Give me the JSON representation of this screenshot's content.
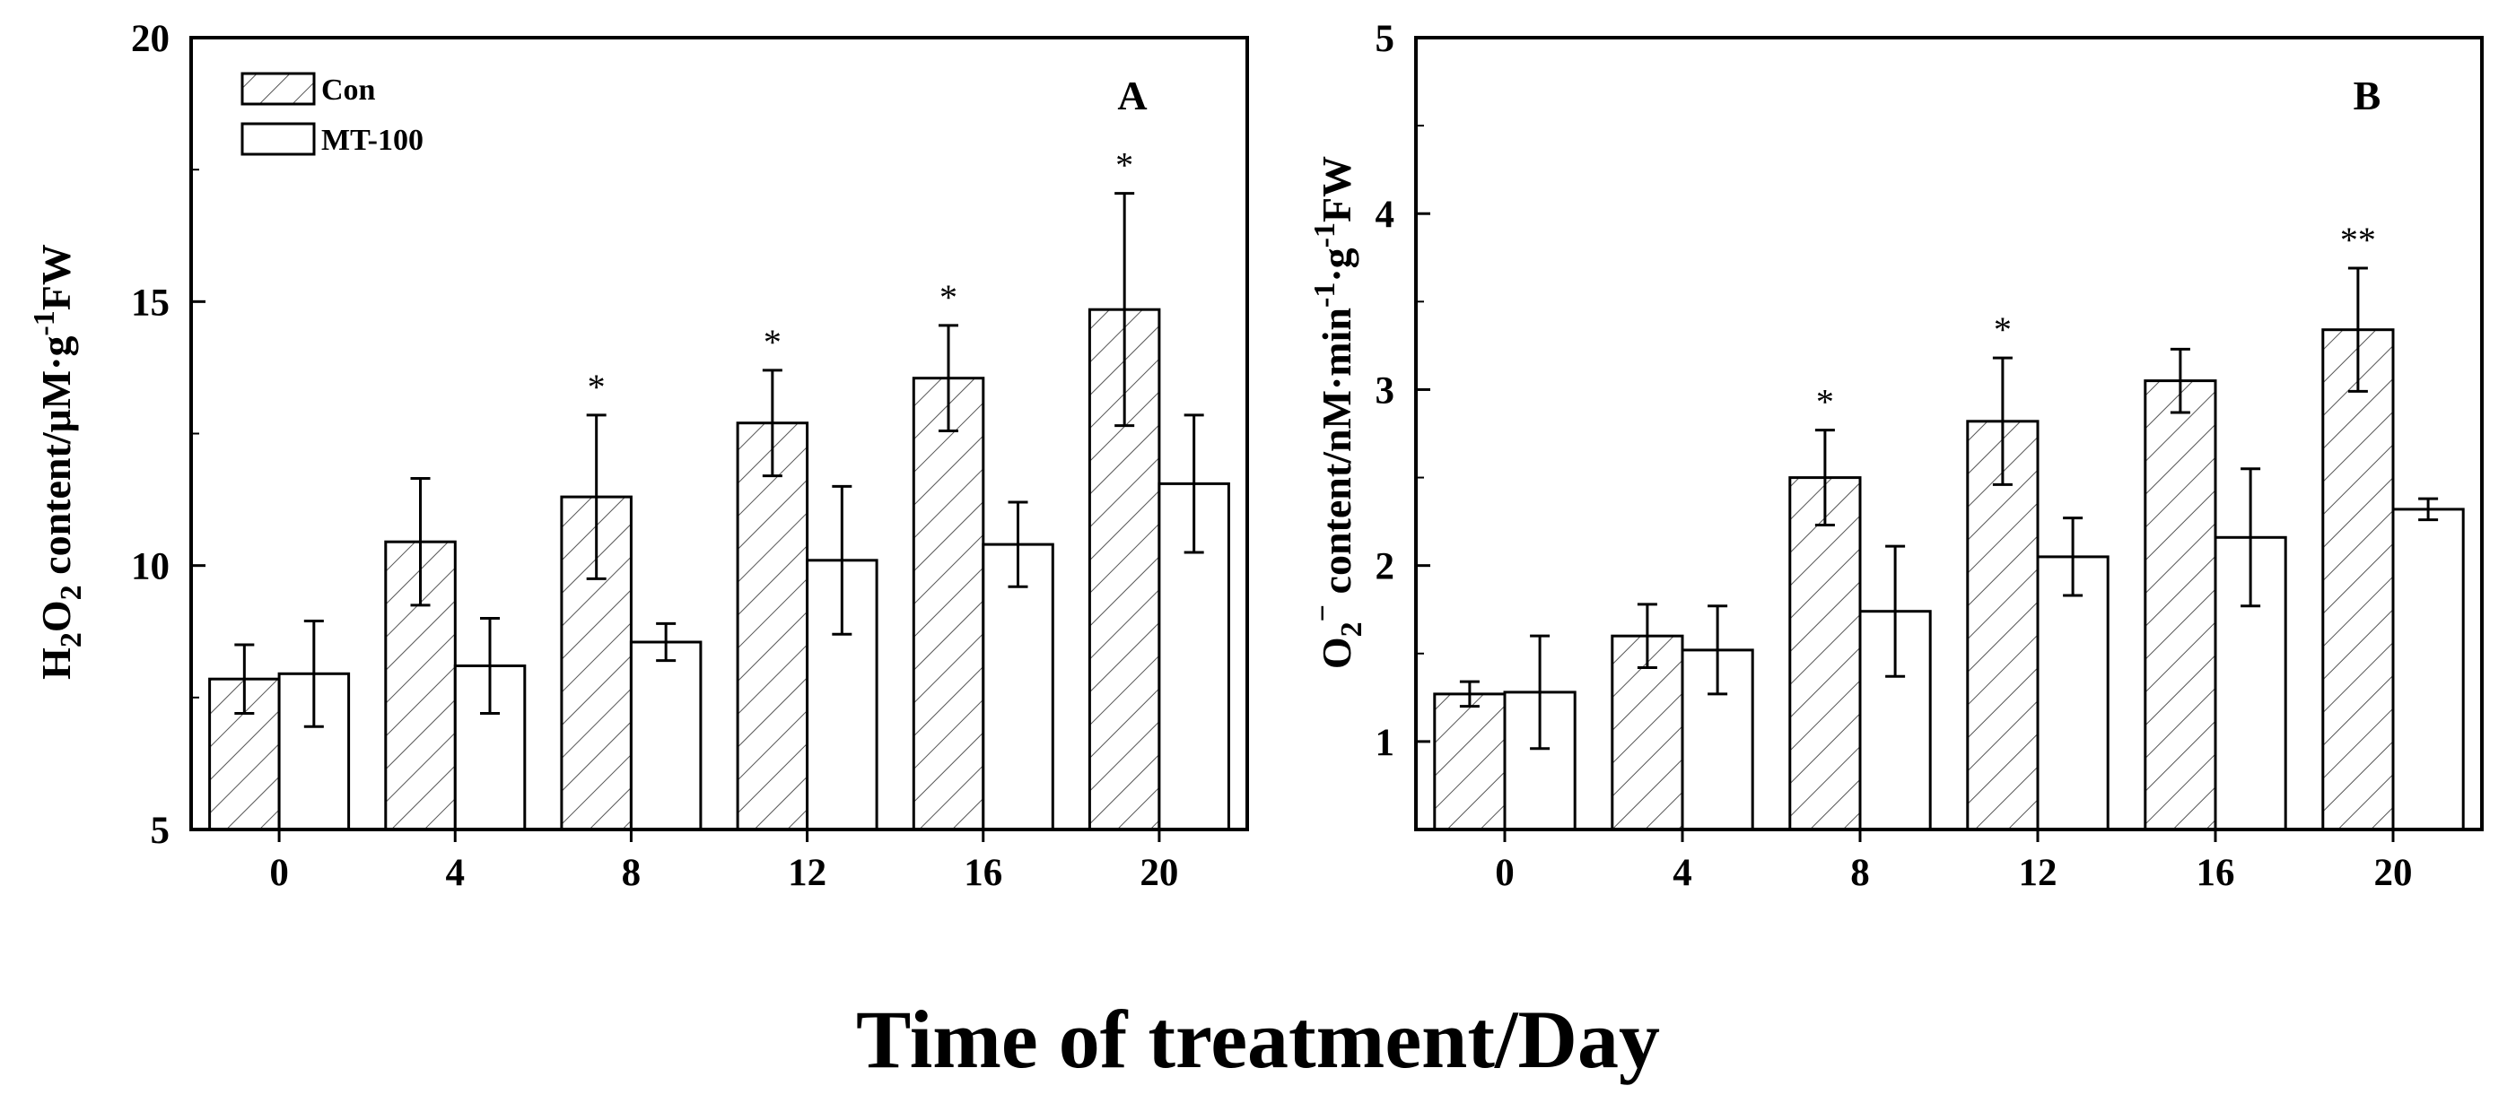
{
  "figure": {
    "shared_xlabel": "Time of treatment/Day",
    "legend": [
      {
        "name": "Con",
        "pattern": "hatched"
      },
      {
        "name": "MT-100",
        "pattern": "open"
      }
    ]
  },
  "chart_data": [
    {
      "type": "bar",
      "panel_label": "A",
      "categories": [
        "0",
        "4",
        "8",
        "12",
        "16",
        "20"
      ],
      "ylabel": {
        "prefix": "H",
        "sub1": "2",
        "mid": "O",
        "sub2": "2",
        "rest": " content/μM·g",
        "sup": "-1",
        "suffix": "FW"
      },
      "ylim": [
        5,
        20
      ],
      "yticks": [
        5,
        10,
        15,
        20
      ],
      "series": [
        {
          "name": "Con",
          "values": [
            7.85,
            10.45,
            11.3,
            12.7,
            13.55,
            14.85
          ],
          "errors": [
            0.65,
            1.2,
            1.55,
            1.0,
            1.0,
            2.2
          ]
        },
        {
          "name": "MT-100",
          "values": [
            7.95,
            8.1,
            8.55,
            10.1,
            10.4,
            11.55
          ],
          "errors": [
            1.0,
            0.9,
            0.35,
            1.4,
            0.8,
            1.3
          ]
        }
      ],
      "significance": [
        "",
        "",
        "*",
        "*",
        "*",
        "*"
      ]
    },
    {
      "type": "bar",
      "panel_label": "B",
      "categories": [
        "0",
        "4",
        "8",
        "12",
        "16",
        "20"
      ],
      "ylabel": {
        "prefix": "O",
        "sub1": "2",
        "sup0": "−",
        "rest": " content/nM·min",
        "sup1": "-1",
        "mid": "·g",
        "sup2": "-1",
        "suffix": "FW"
      },
      "ylim": [
        0.5,
        5
      ],
      "yticks": [
        1,
        2,
        3,
        4,
        5
      ],
      "series": [
        {
          "name": "Con",
          "values": [
            1.27,
            1.6,
            2.5,
            2.82,
            3.05,
            3.34
          ],
          "errors": [
            0.07,
            0.18,
            0.27,
            0.36,
            0.18,
            0.35
          ]
        },
        {
          "name": "MT-100",
          "values": [
            1.28,
            1.52,
            1.74,
            2.05,
            2.16,
            2.32
          ],
          "errors": [
            0.32,
            0.25,
            0.37,
            0.22,
            0.39,
            0.06
          ]
        }
      ],
      "significance": [
        "",
        "",
        "*",
        "*",
        "",
        "**"
      ]
    }
  ]
}
